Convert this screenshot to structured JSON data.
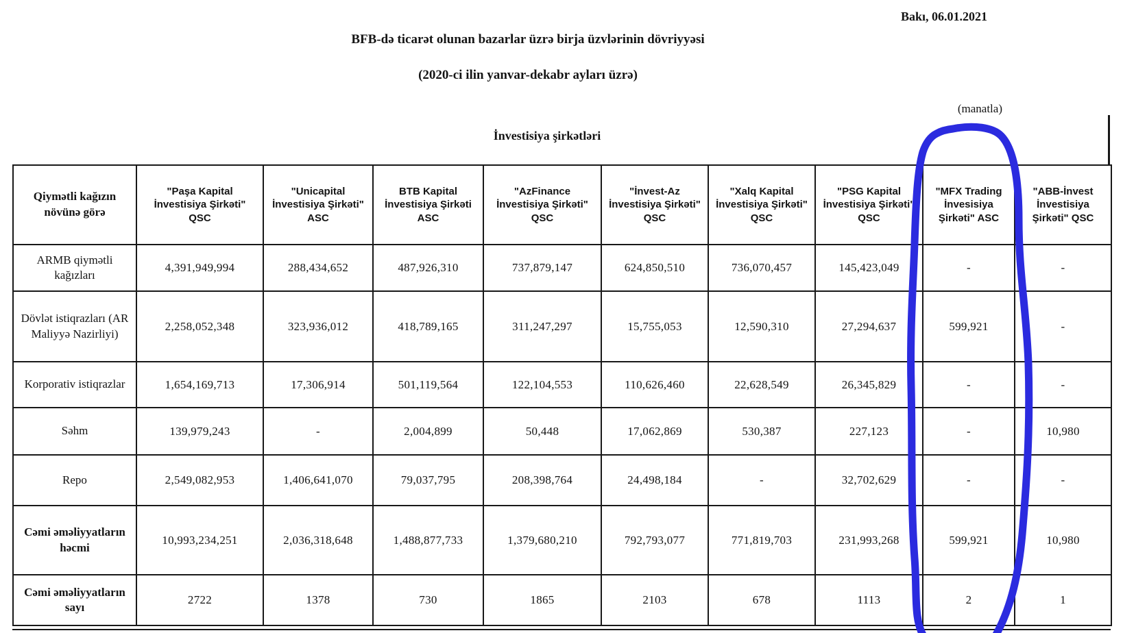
{
  "page": {
    "date": "Bakı, 06.01.2021",
    "title_line1": "BFB-də ticarət olunan bazarlar üzrə birja üzvlərinin dövriyyəsi",
    "title_line2": "(2020-ci ilin yanvar-dekabr ayları üzrə)",
    "unit_note": "(manatla)"
  },
  "table": {
    "group_header": "İnvestisiya şirkətləri",
    "row_header": "Qiymətli kağızın növünə görə",
    "companies": [
      "\"Paşa Kapital İnvestisiya Şirkəti\" QSC",
      "\"Unicapital İnvestisiya Şirkəti\" ASC",
      "BTB Kapital İnvestisiya Şirkəti ASC",
      "\"AzFinance İnvestisiya Şirkəti\" QSC",
      "\"İnvest-Az İnvestisiya Şirkəti\" QSC",
      "\"Xalq Kapital İnvestisiya Şirkəti\" QSC",
      "\"PSG Kapital İnvestisiya Şirkəti\" QSC",
      "\"MFX Trading İnvesisiya Şirkəti\" ASC",
      "\"ABB-İnvest İnvestisiya Şirkəti\" QSC"
    ],
    "rows": [
      {
        "label": "ARMB qiymətli kağızları",
        "bold": false,
        "values": [
          "4,391,949,994",
          "288,434,652",
          "487,926,310",
          "737,879,147",
          "624,850,510",
          "736,070,457",
          "145,423,049",
          "-",
          "-"
        ]
      },
      {
        "label": "Dövlət istiqrazları (AR Maliyyə Nazirliyi)",
        "bold": false,
        "values": [
          "2,258,052,348",
          "323,936,012",
          "418,789,165",
          "311,247,297",
          "15,755,053",
          "12,590,310",
          "27,294,637",
          "599,921",
          "-"
        ]
      },
      {
        "label": "Korporativ istiqrazlar",
        "bold": false,
        "values": [
          "1,654,169,713",
          "17,306,914",
          "501,119,564",
          "122,104,553",
          "110,626,460",
          "22,628,549",
          "26,345,829",
          "-",
          "-"
        ]
      },
      {
        "label": "Səhm",
        "bold": false,
        "values": [
          "139,979,243",
          "-",
          "2,004,899",
          "50,448",
          "17,062,869",
          "530,387",
          "227,123",
          "-",
          "10,980"
        ]
      },
      {
        "label": "Repo",
        "bold": false,
        "values": [
          "2,549,082,953",
          "1,406,641,070",
          "79,037,795",
          "208,398,764",
          "24,498,184",
          "-",
          "32,702,629",
          "-",
          "-"
        ]
      },
      {
        "label": "Cəmi əməliyyatların həcmi",
        "bold": true,
        "values": [
          "10,993,234,251",
          "2,036,318,648",
          "1,488,877,733",
          "1,379,680,210",
          "792,793,077",
          "771,819,703",
          "231,993,268",
          "599,921",
          "10,980"
        ]
      },
      {
        "label": "Cəmi əməliyyatların sayı",
        "bold": true,
        "values": [
          "2722",
          "1378",
          "730",
          "1865",
          "2103",
          "678",
          "1113",
          "2",
          "1"
        ]
      }
    ]
  },
  "annotation": {
    "type": "hand-drawn ellipse",
    "color": "#2b2bdf",
    "circled_column": "\"MFX Trading İnvesisiya Şirkəti\" ASC"
  }
}
